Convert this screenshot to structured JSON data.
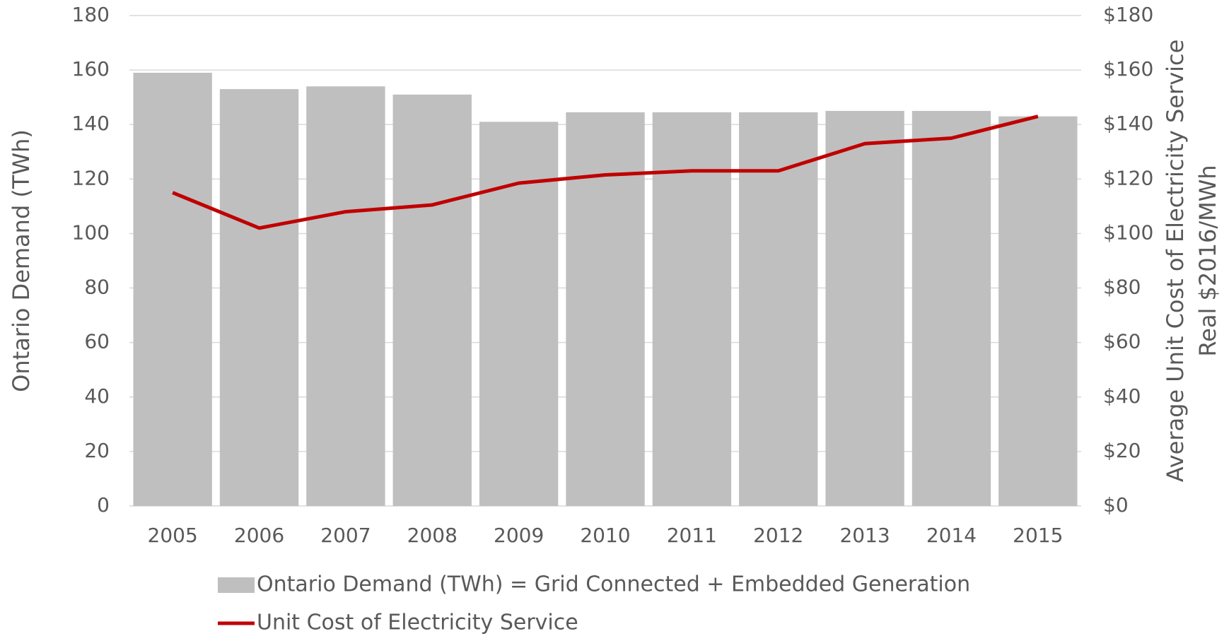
{
  "chart_data": {
    "type": "bar",
    "categories": [
      "2005",
      "2006",
      "2007",
      "2008",
      "2009",
      "2010",
      "2011",
      "2012",
      "2013",
      "2014",
      "2015"
    ],
    "series": [
      {
        "name": "Ontario Demand (TWh) = Grid Connected + Embedded Generation",
        "type": "bar",
        "color": "#bfbfbf",
        "values": [
          159,
          153,
          154,
          151,
          141,
          144.5,
          144.5,
          144.5,
          145,
          145,
          143
        ]
      },
      {
        "name": "Unit Cost of Electricity Service",
        "type": "line",
        "axis": "y2",
        "color": "#c00000",
        "values": [
          115,
          102,
          108,
          110.5,
          118.5,
          121.5,
          123,
          123,
          133,
          135,
          143
        ]
      }
    ],
    "y_label": "Ontario Demand (TWh)",
    "y2_label": [
      "Average Unit Cost of Electricity Service",
      "Real $2016/MWh"
    ],
    "ylim": [
      0,
      180
    ],
    "yticks": [
      0,
      20,
      40,
      60,
      80,
      100,
      120,
      140,
      160,
      180
    ],
    "y2lim": [
      0,
      180
    ],
    "y2ticks": [
      {
        "value": 0,
        "label": "$0"
      },
      {
        "value": 20,
        "label": "$20"
      },
      {
        "value": 40,
        "label": "$40"
      },
      {
        "value": 60,
        "label": "$60"
      },
      {
        "value": 80,
        "label": "$80"
      },
      {
        "value": 100,
        "label": "$100"
      },
      {
        "value": 120,
        "label": "$120"
      },
      {
        "value": 140,
        "label": "$140"
      },
      {
        "value": 160,
        "label": "$160"
      },
      {
        "value": 180,
        "label": "$180"
      }
    ],
    "grid": true,
    "legend": "bottom"
  }
}
